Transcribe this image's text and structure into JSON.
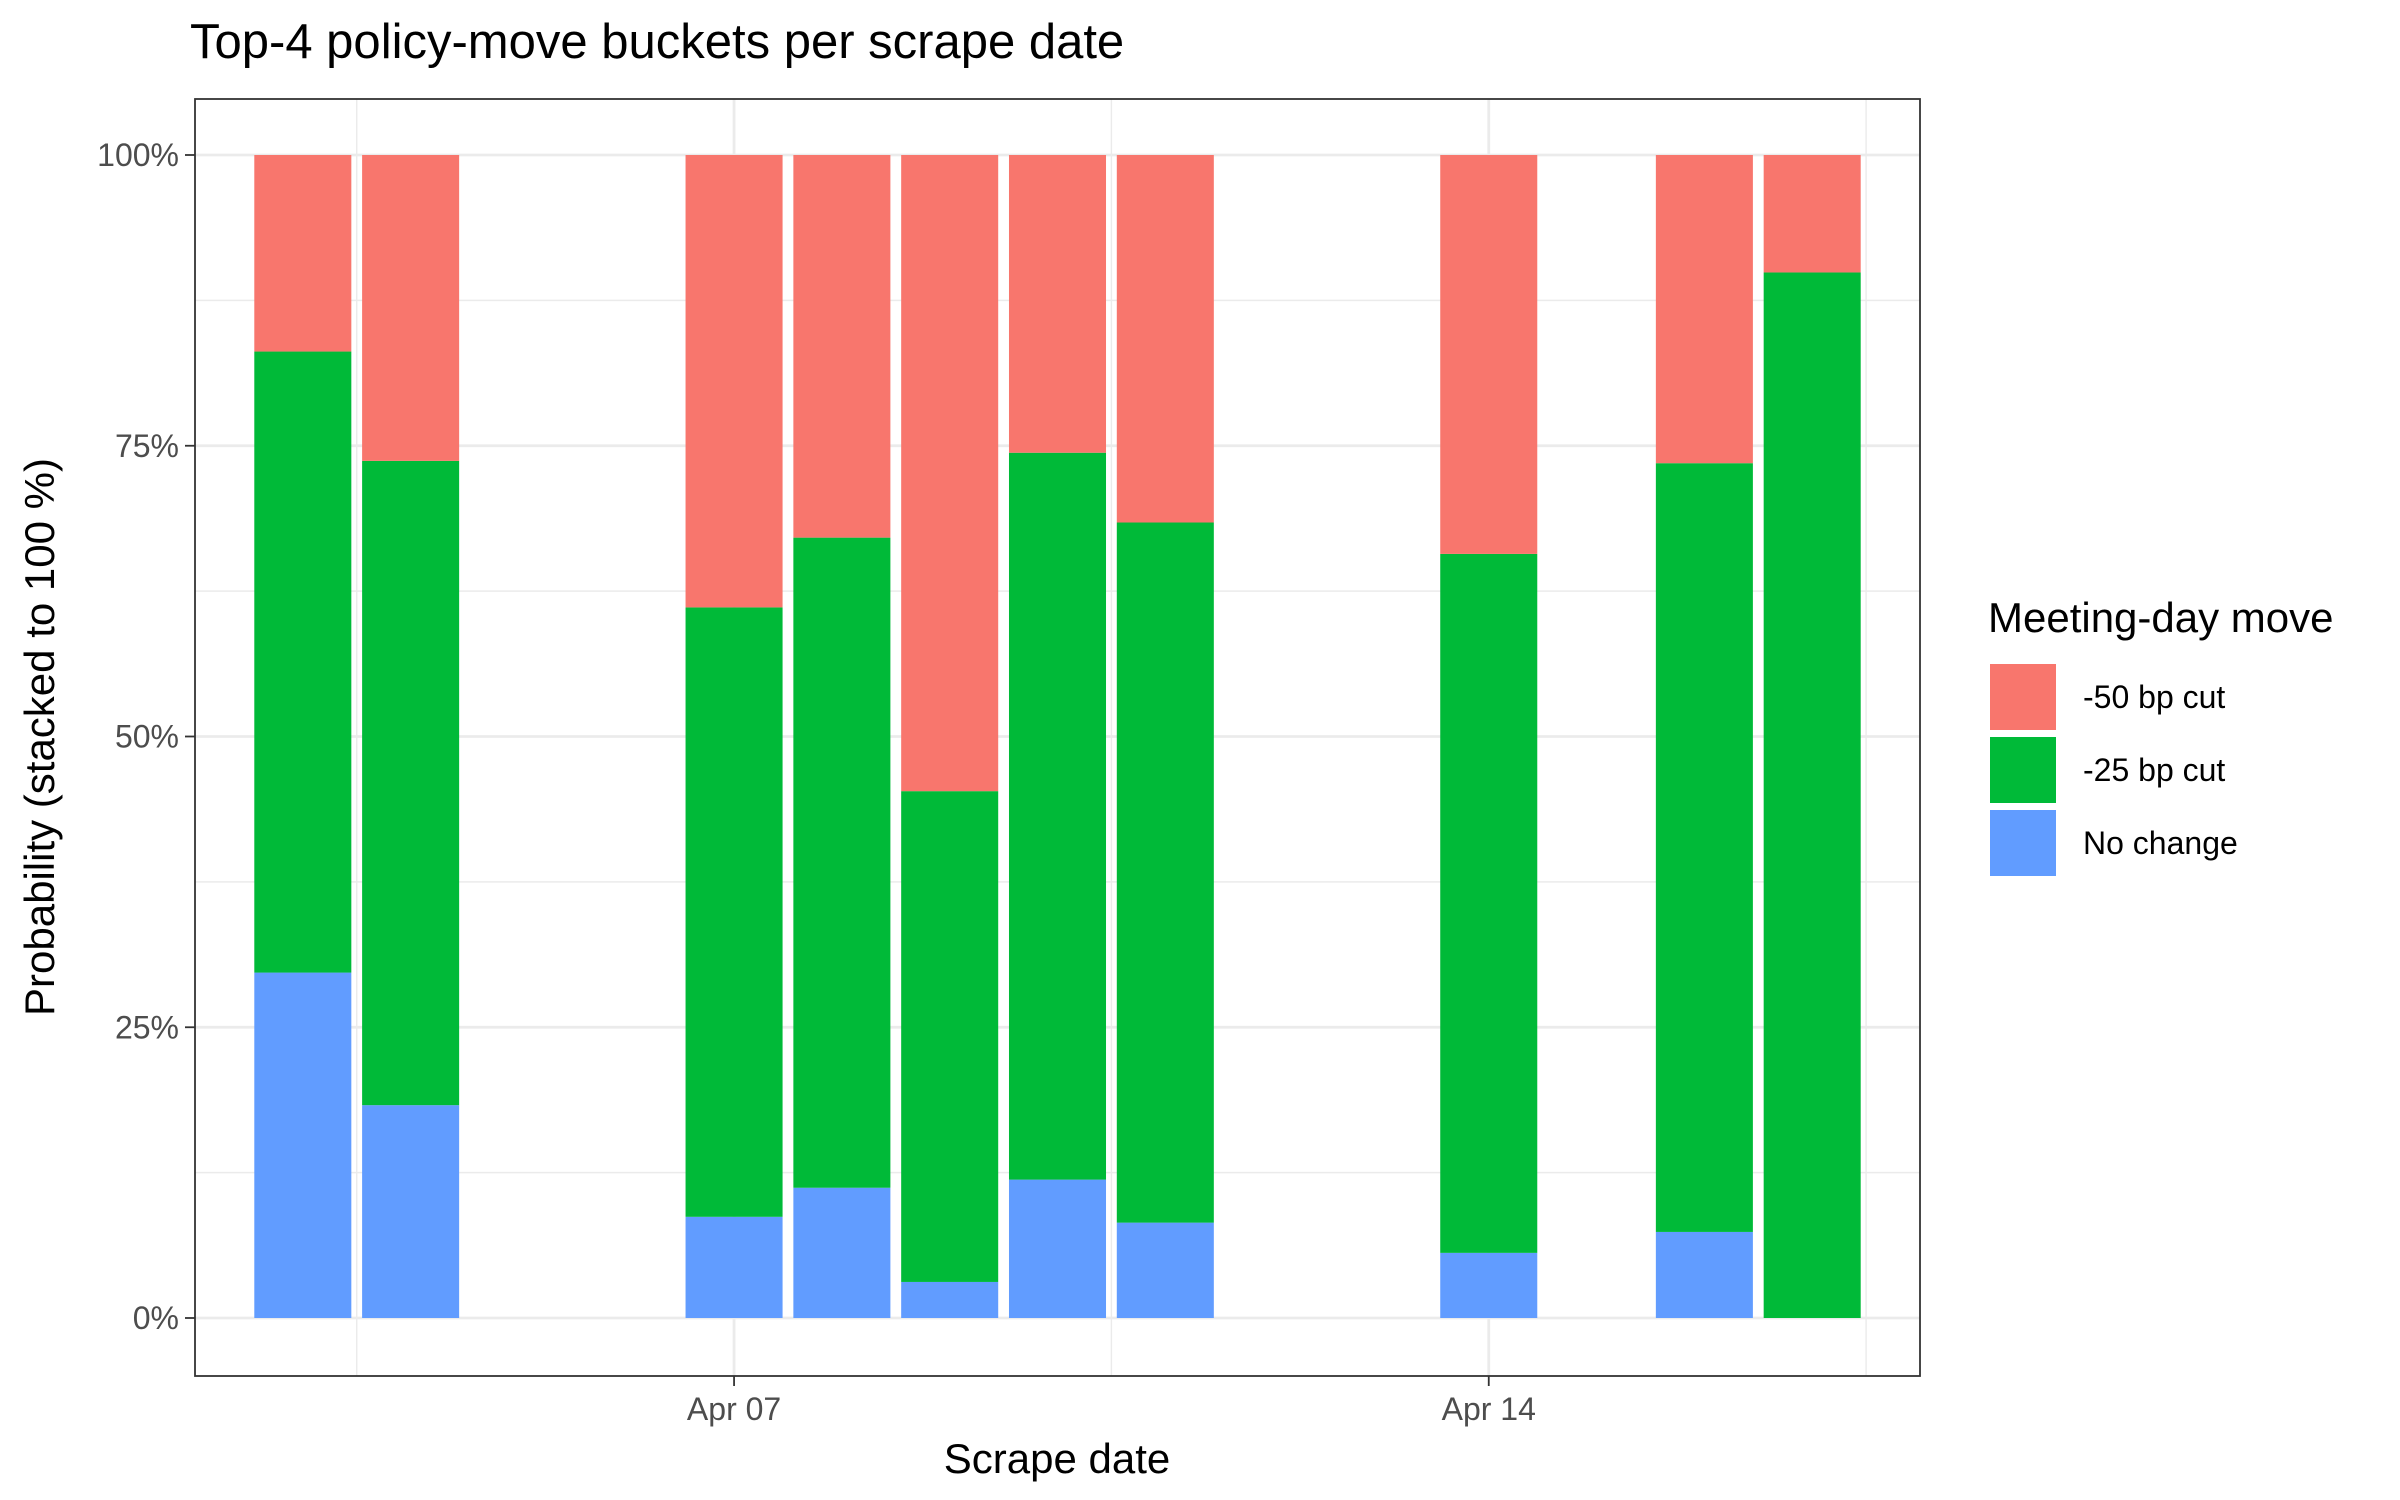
{
  "chart_data": {
    "type": "bar",
    "stacked": true,
    "normalized": true,
    "title": "Top-4 policy-move buckets per scrape date",
    "xlabel": "Scrape date",
    "ylabel": "Probability (stacked to 100 %)",
    "x_range": [
      "2025-04-02",
      "2025-04-18"
    ],
    "ylim": [
      0,
      100
    ],
    "x_ticks": [
      {
        "date": "2025-04-07",
        "label": "Apr 07"
      },
      {
        "date": "2025-04-14",
        "label": "Apr 14"
      }
    ],
    "y_ticks": [
      {
        "value": 0,
        "label": "0%"
      },
      {
        "value": 25,
        "label": "25%"
      },
      {
        "value": 50,
        "label": "50%"
      },
      {
        "value": 75,
        "label": "75%"
      },
      {
        "value": 100,
        "label": "100%"
      }
    ],
    "grid": true,
    "legend": {
      "title": "Meeting-day move",
      "placement": "right",
      "entries": [
        {
          "name": "-50 bp cut",
          "color": "#F8766D"
        },
        {
          "name": "-25 bp cut",
          "color": "#00BA38"
        },
        {
          "name": "No change",
          "color": "#619CFF"
        }
      ]
    },
    "x": [
      "2025-04-03",
      "2025-04-04",
      "2025-04-07",
      "2025-04-08",
      "2025-04-09",
      "2025-04-10",
      "2025-04-11",
      "2025-04-14",
      "2025-04-16",
      "2025-04-17"
    ],
    "series": [
      {
        "name": "No change",
        "color": "#619CFF",
        "values": [
          29.7,
          18.3,
          8.7,
          11.2,
          3.1,
          11.9,
          8.2,
          5.6,
          7.4,
          0
        ]
      },
      {
        "name": "-25 bp cut",
        "color": "#00BA38",
        "values": [
          53.4,
          55.4,
          52.4,
          55.9,
          42.2,
          62.5,
          60.2,
          60.1,
          66.1,
          89.9
        ]
      },
      {
        "name": "-50 bp cut",
        "color": "#F8766D",
        "values": [
          16.9,
          26.3,
          38.9,
          32.9,
          54.7,
          25.6,
          31.6,
          34.3,
          26.5,
          10.1
        ]
      }
    ]
  }
}
